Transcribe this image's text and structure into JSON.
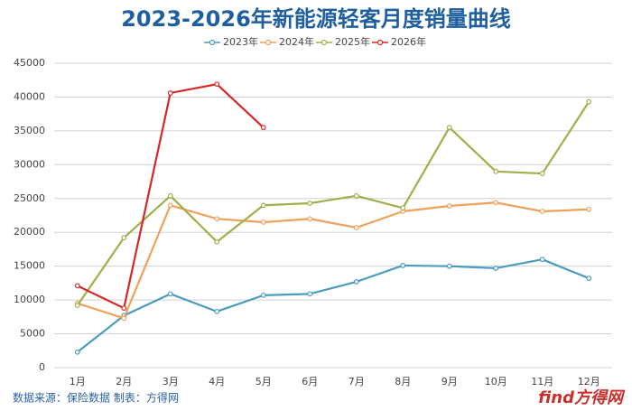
{
  "chart_data": {
    "type": "line",
    "title": "2023-2026年新能源轻客月度销量曲线",
    "categories": [
      "1月",
      "2月",
      "3月",
      "4月",
      "5月",
      "6月",
      "7月",
      "8月",
      "9月",
      "10月",
      "11月",
      "12月"
    ],
    "series": [
      {
        "name": "2023年",
        "color": "#4a9bbf",
        "values": [
          2300,
          7700,
          10900,
          8300,
          10700,
          10900,
          12700,
          15100,
          15000,
          14700,
          16000,
          13200
        ]
      },
      {
        "name": "2024年",
        "color": "#f0a05a",
        "values": [
          9500,
          7300,
          24000,
          22000,
          21500,
          22000,
          20700,
          23100,
          23900,
          24400,
          23100,
          23400
        ]
      },
      {
        "name": "2025年",
        "color": "#a3ad4a",
        "values": [
          9200,
          19200,
          25400,
          18600,
          24000,
          24300,
          25400,
          23600,
          35500,
          29000,
          28700,
          39300
        ]
      },
      {
        "name": "2026年",
        "color": "#d62728",
        "values": [
          12100,
          8800,
          40600,
          41900,
          35500,
          null,
          null,
          null,
          null,
          null,
          null,
          null
        ]
      }
    ],
    "ylim": [
      0,
      45000
    ],
    "yticks": [
      0,
      5000,
      10000,
      15000,
      20000,
      25000,
      30000,
      35000,
      40000,
      45000
    ],
    "grid": true,
    "legend": "top",
    "footer": "数据来源：保险数据 制表：方得网",
    "logo": "find方得网"
  }
}
